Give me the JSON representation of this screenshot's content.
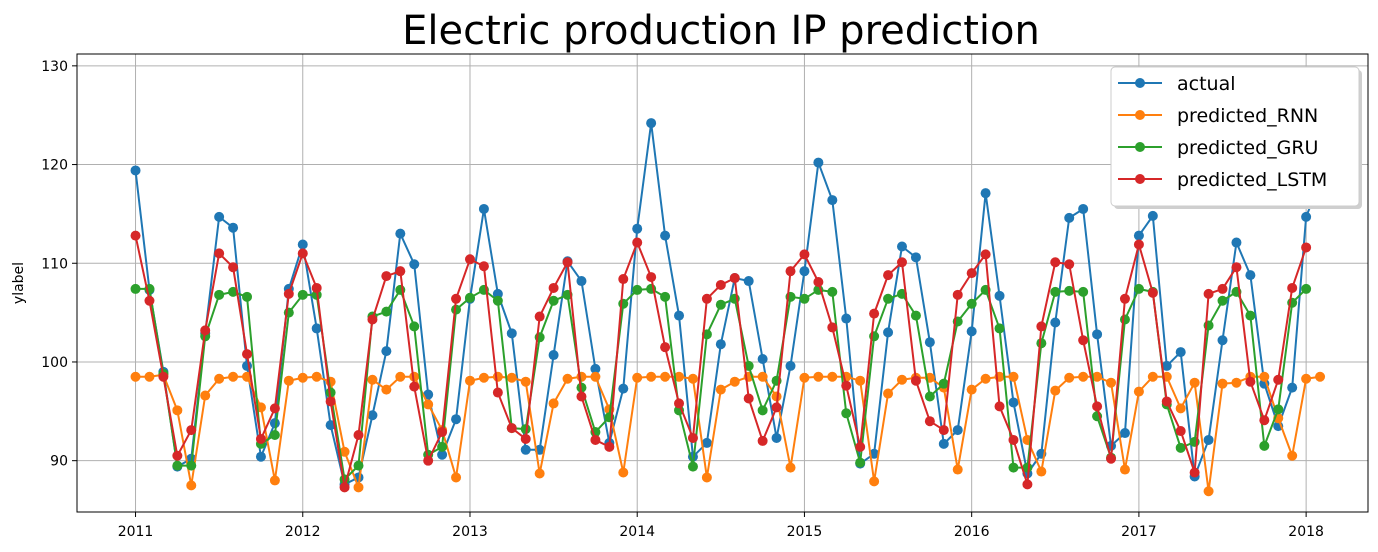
{
  "chart_data": {
    "type": "line",
    "title": "Electric production IP prediction",
    "xlabel": "",
    "ylabel": "ylabel",
    "xlim": [
      2010.65,
      2018.37
    ],
    "ylim": [
      84.8,
      131.2
    ],
    "x_ticks": [
      "2011",
      "2012",
      "2013",
      "2014",
      "2015",
      "2016",
      "2017",
      "2018"
    ],
    "y_ticks": [
      "90",
      "100",
      "110",
      "120",
      "130"
    ],
    "grid": true,
    "legend_position": "top-right",
    "x_start_year": 2011,
    "series": [
      {
        "name": "actual",
        "color": "#1f77b4",
        "values": [
          119.4,
          107.3,
          99.0,
          89.4,
          90.2,
          102.9,
          114.7,
          113.6,
          99.6,
          90.4,
          93.8,
          107.4,
          111.9,
          103.4,
          93.6,
          87.6,
          88.3,
          94.6,
          101.1,
          113.0,
          109.9,
          96.7,
          90.6,
          94.2,
          106.4,
          115.5,
          106.9,
          102.9,
          91.1,
          91.1,
          100.7,
          110.2,
          108.2,
          99.3,
          91.8,
          97.3,
          113.5,
          124.2,
          112.8,
          104.7,
          90.4,
          91.8,
          101.8,
          108.5,
          108.2,
          100.3,
          92.3,
          99.6,
          109.2,
          120.2,
          116.4,
          104.4,
          89.7,
          90.7,
          103.0,
          111.7,
          110.6,
          102.0,
          91.7,
          93.1,
          103.1,
          117.1,
          106.7,
          95.9,
          88.7,
          90.7,
          104.0,
          114.6,
          115.5,
          102.8,
          91.5,
          92.8,
          112.8,
          114.8,
          99.6,
          101.0,
          88.4,
          92.1,
          102.2,
          112.1,
          108.8,
          97.8,
          93.5,
          97.4,
          114.7,
          118.3
        ]
      },
      {
        "name": "predicted_RNN",
        "color": "#ff7f0e",
        "values": [
          98.5,
          98.5,
          98.7,
          95.1,
          87.5,
          96.6,
          98.3,
          98.5,
          98.5,
          95.4,
          88.0,
          98.1,
          98.4,
          98.5,
          98.0,
          90.9,
          87.3,
          98.2,
          97.2,
          98.5,
          98.5,
          95.7,
          93.1,
          88.3,
          98.1,
          98.4,
          98.5,
          98.4,
          98.0,
          88.7,
          95.8,
          98.3,
          98.5,
          98.5,
          95.2,
          88.8,
          98.4,
          98.5,
          98.5,
          98.5,
          98.3,
          88.3,
          97.2,
          98.0,
          98.5,
          98.5,
          96.5,
          89.3,
          98.4,
          98.5,
          98.5,
          98.5,
          98.1,
          87.9,
          96.8,
          98.2,
          98.4,
          98.4,
          97.4,
          89.1,
          97.2,
          98.3,
          98.5,
          98.5,
          92.1,
          88.9,
          97.1,
          98.4,
          98.5,
          98.5,
          97.9,
          89.1,
          97.0,
          98.5,
          98.5,
          95.3,
          97.9,
          86.9,
          97.8,
          97.9,
          98.5,
          98.5,
          94.3,
          90.5,
          98.3,
          98.5
        ]
      },
      {
        "name": "predicted_GRU",
        "color": "#2ca02c",
        "values": [
          107.4,
          107.4,
          98.8,
          89.5,
          89.5,
          102.6,
          106.8,
          107.1,
          106.6,
          91.7,
          92.6,
          105.0,
          106.8,
          106.8,
          96.9,
          88.1,
          89.5,
          104.6,
          105.1,
          107.3,
          103.6,
          90.6,
          91.4,
          105.3,
          106.5,
          107.3,
          106.2,
          93.3,
          93.2,
          102.5,
          106.2,
          106.8,
          97.4,
          92.9,
          94.4,
          105.9,
          107.3,
          107.4,
          106.6,
          95.1,
          89.4,
          102.8,
          105.8,
          106.4,
          99.6,
          95.1,
          98.1,
          106.6,
          106.4,
          107.3,
          107.1,
          94.8,
          89.8,
          102.6,
          106.4,
          106.9,
          104.7,
          96.5,
          97.8,
          104.1,
          105.9,
          107.3,
          103.4,
          89.3,
          89.3,
          101.9,
          107.1,
          107.2,
          107.1,
          94.5,
          90.3,
          104.3,
          107.4,
          107.1,
          95.7,
          91.3,
          91.9,
          103.7,
          106.2,
          107.1,
          104.7,
          91.5,
          95.2,
          106.0,
          107.4
        ]
      },
      {
        "name": "predicted_LSTM",
        "color": "#d62728",
        "values": [
          112.8,
          106.2,
          98.5,
          90.5,
          93.1,
          103.2,
          111.0,
          109.6,
          100.8,
          92.2,
          95.3,
          106.9,
          111.0,
          107.5,
          96.0,
          87.3,
          92.6,
          104.3,
          108.7,
          109.2,
          97.5,
          90.0,
          92.9,
          106.4,
          110.4,
          109.7,
          96.9,
          93.3,
          92.2,
          104.6,
          107.5,
          110.1,
          96.5,
          92.1,
          91.4,
          108.4,
          112.1,
          108.6,
          101.5,
          95.8,
          92.3,
          106.4,
          107.8,
          108.5,
          96.3,
          92.0,
          95.4,
          109.2,
          110.9,
          108.1,
          103.5,
          97.6,
          91.4,
          104.9,
          108.8,
          110.1,
          98.1,
          94.0,
          93.1,
          106.8,
          109.0,
          110.9,
          95.5,
          92.1,
          87.6,
          103.6,
          110.1,
          109.9,
          102.2,
          95.5,
          90.2,
          106.4,
          111.9,
          107.0,
          96.0,
          93.0,
          88.8,
          106.9,
          107.4,
          109.6,
          98.0,
          94.1,
          98.2,
          107.5,
          111.6
        ]
      }
    ]
  }
}
